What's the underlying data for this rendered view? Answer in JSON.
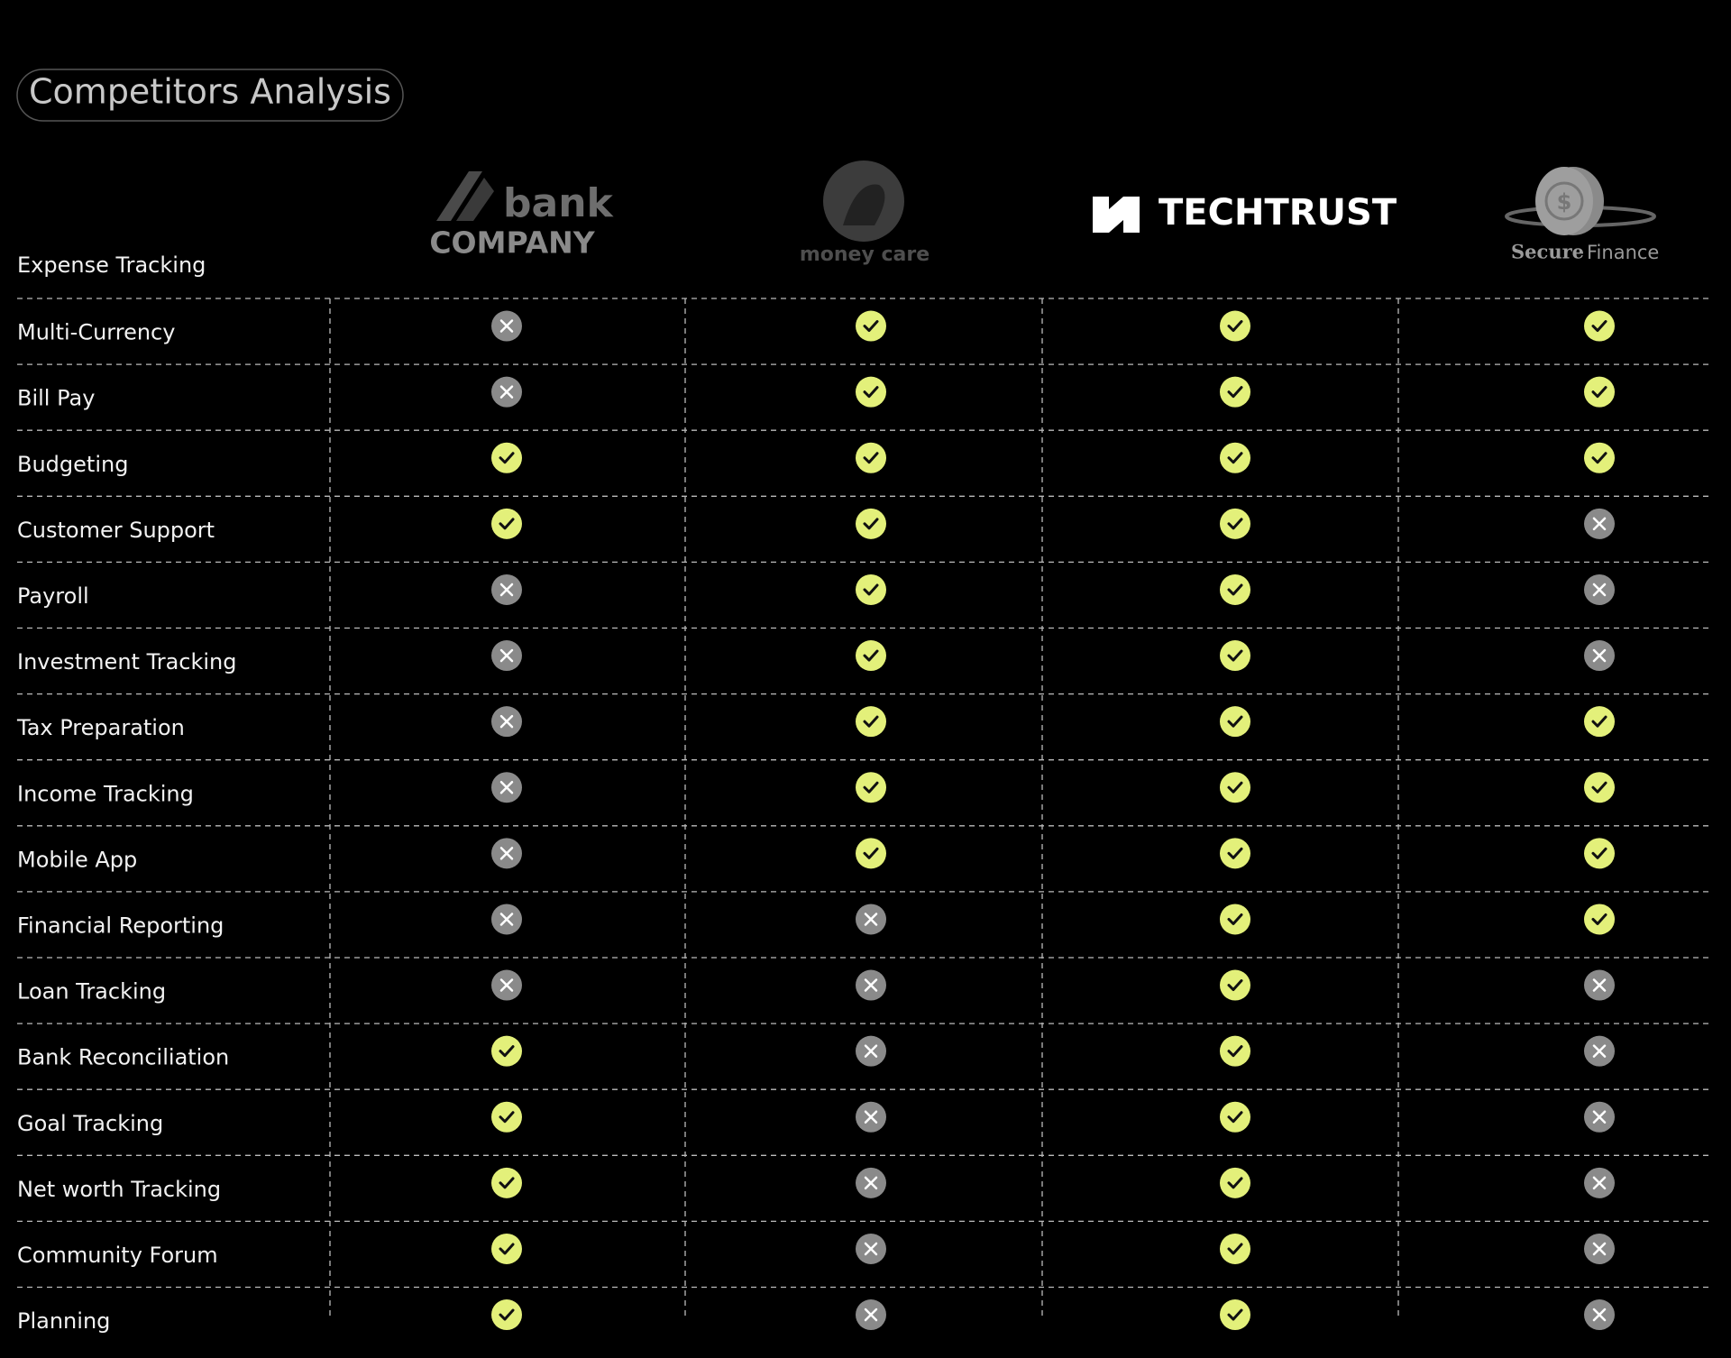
{
  "title": "Competitors Analysis",
  "header_label": "Expense Tracking",
  "competitors": [
    {
      "lines": [
        "bank",
        "COMPANY"
      ]
    },
    {
      "lines": [
        "money care"
      ]
    },
    {
      "lines": [
        "TECHTRUST"
      ]
    },
    {
      "lines": [
        "Secure",
        "Finance"
      ]
    }
  ],
  "rows": [
    {
      "feature": "Multi-Currency",
      "values": [
        false,
        true,
        true,
        true
      ]
    },
    {
      "feature": "Bill Pay",
      "values": [
        false,
        true,
        true,
        true
      ]
    },
    {
      "feature": "Budgeting",
      "values": [
        true,
        true,
        true,
        true
      ]
    },
    {
      "feature": "Customer Support",
      "values": [
        true,
        true,
        true,
        false
      ]
    },
    {
      "feature": "Payroll",
      "values": [
        false,
        true,
        true,
        false
      ]
    },
    {
      "feature": "Investment Tracking",
      "values": [
        false,
        true,
        true,
        false
      ]
    },
    {
      "feature": "Tax Preparation",
      "values": [
        false,
        true,
        true,
        true
      ]
    },
    {
      "feature": "Income Tracking",
      "values": [
        false,
        true,
        true,
        true
      ]
    },
    {
      "feature": "Mobile App",
      "values": [
        false,
        true,
        true,
        true
      ]
    },
    {
      "feature": "Financial Reporting",
      "values": [
        false,
        false,
        true,
        true
      ]
    },
    {
      "feature": "Loan Tracking",
      "values": [
        false,
        false,
        true,
        false
      ]
    },
    {
      "feature": "Bank Reconciliation",
      "values": [
        true,
        false,
        true,
        false
      ]
    },
    {
      "feature": "Goal Tracking",
      "values": [
        true,
        false,
        true,
        false
      ]
    },
    {
      "feature": "Net worth Tracking",
      "values": [
        true,
        false,
        true,
        false
      ]
    },
    {
      "feature": "Community Forum",
      "values": [
        true,
        false,
        true,
        false
      ]
    },
    {
      "feature": "Planning",
      "values": [
        true,
        false,
        true,
        false
      ]
    }
  ]
}
